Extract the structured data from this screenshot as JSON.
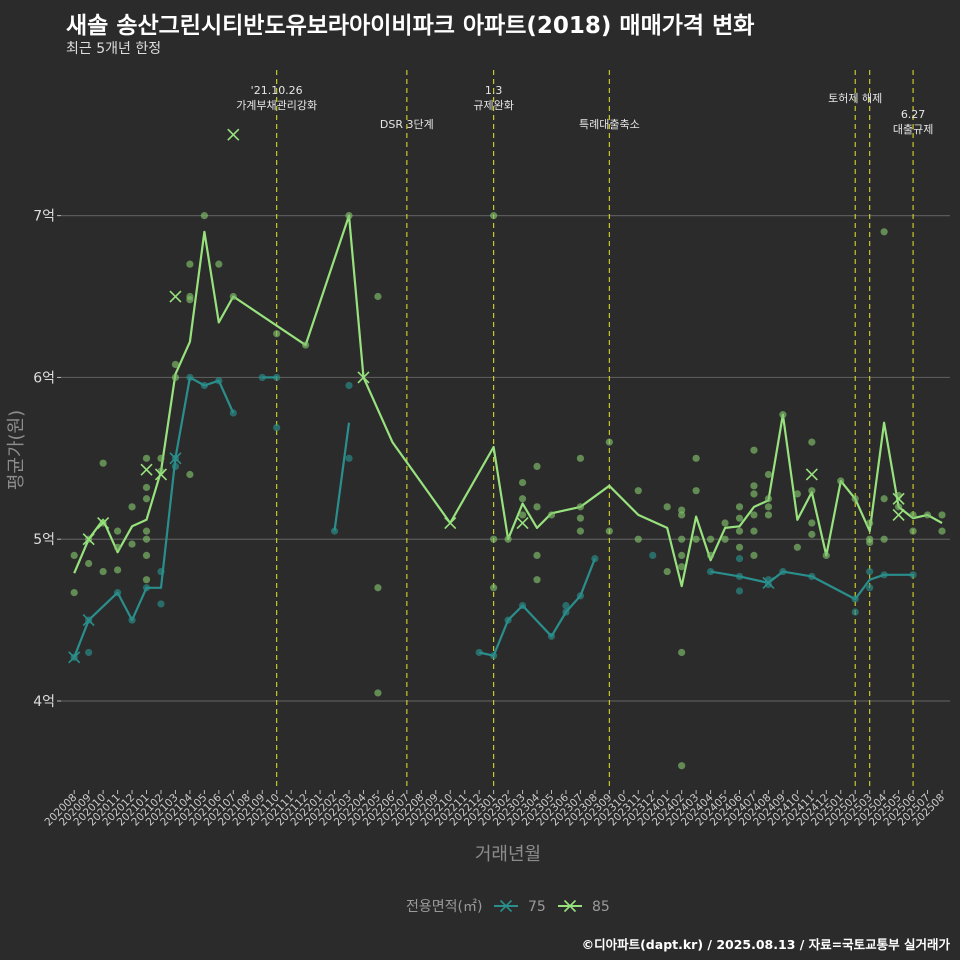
{
  "title": "새솔 송산그린시티반도유보라아이비파크 아파트(2018) 매매가격 변화",
  "subtitle": "최근 5개년 한정",
  "caption": "©디아파트(dapt.kr) / 2025.08.13 / 자료=국토교통부 실거래가",
  "chart_data": {
    "type": "line",
    "xlabel": "거래년월",
    "ylabel": "평균가(원)",
    "ylim": [
      3.45,
      7.9
    ],
    "yticks": [
      {
        "value": 4,
        "label": "4억"
      },
      {
        "value": 5,
        "label": "5억"
      },
      {
        "value": 6,
        "label": "6억"
      },
      {
        "value": 7,
        "label": "7억"
      }
    ],
    "x": [
      "202008",
      "202009",
      "202010",
      "202011",
      "202012",
      "202101",
      "202102",
      "202103",
      "202104",
      "202105",
      "202106",
      "202107",
      "202108",
      "202109",
      "202110",
      "202111",
      "202112",
      "202201",
      "202202",
      "202203",
      "202204",
      "202205",
      "202206",
      "202207",
      "202208",
      "202209",
      "202210",
      "202211",
      "202212",
      "202301",
      "202302",
      "202303",
      "202304",
      "202305",
      "202306",
      "202307",
      "202308",
      "202309",
      "202310",
      "202311",
      "202312",
      "202401",
      "202402",
      "202403",
      "202404",
      "202405",
      "202406",
      "202407",
      "202408",
      "202409",
      "202410",
      "202411",
      "202412",
      "202501",
      "202502",
      "202503",
      "202504",
      "202505",
      "202506",
      "202507",
      "202508"
    ],
    "grid": true,
    "legend": {
      "title": "전용면적(㎡)",
      "position": "bottom",
      "items": [
        {
          "name": "75",
          "color": "#2a8f8c"
        },
        {
          "name": "85",
          "color": "#98e27e"
        }
      ]
    },
    "series": [
      {
        "name": "75",
        "color": "#2a8f8c",
        "segments": [
          [
            [
              "202008",
              4.27
            ],
            [
              "202009",
              4.5
            ],
            [
              "202011",
              4.67
            ],
            [
              "202012",
              4.5
            ],
            [
              "202101",
              4.7
            ],
            [
              "202102",
              4.7
            ],
            [
              "202103",
              5.5
            ],
            [
              "202104",
              6.0
            ],
            [
              "202105",
              5.95
            ],
            [
              "202106",
              5.98
            ],
            [
              "202107",
              5.78
            ]
          ],
          [
            [
              "202109",
              6.0
            ],
            [
              "202110",
              6.0
            ]
          ],
          [
            [
              "202202",
              5.05
            ],
            [
              "202203",
              5.72
            ]
          ],
          [
            [
              "202212",
              4.3
            ],
            [
              "202301",
              4.28
            ],
            [
              "202302",
              4.5
            ],
            [
              "202303",
              4.59
            ],
            [
              "202305",
              4.4
            ],
            [
              "202306",
              4.55
            ],
            [
              "202307",
              4.65
            ],
            [
              "202308",
              4.88
            ]
          ],
          [
            [
              "202404",
              4.8
            ],
            [
              "202406",
              4.77
            ],
            [
              "202408",
              4.73
            ],
            [
              "202409",
              4.8
            ],
            [
              "202411",
              4.77
            ],
            [
              "202502",
              4.63
            ],
            [
              "202503",
              4.75
            ],
            [
              "202504",
              4.78
            ],
            [
              "202506",
              4.78
            ]
          ]
        ],
        "points": [
          [
            4.27,
            4.27
          ],
          [
            0,
            0
          ]
        ]
      },
      {
        "name": "85",
        "color": "#98e27e",
        "segments": [
          [
            [
              "202008",
              4.79
            ],
            [
              "202009",
              5.0
            ],
            [
              "202010",
              5.12
            ],
            [
              "202011",
              4.92
            ],
            [
              "202012",
              5.08
            ],
            [
              "202101",
              5.12
            ],
            [
              "202102",
              5.42
            ],
            [
              "202103",
              6.02
            ],
            [
              "202104",
              6.22
            ],
            [
              "202105",
              6.9
            ],
            [
              "202106",
              6.34
            ],
            [
              "202107",
              6.5
            ],
            [
              "202112",
              6.2
            ],
            [
              "202203",
              7.0
            ],
            [
              "202204",
              6.0
            ],
            [
              "202206",
              5.6
            ],
            [
              "202210",
              5.1
            ],
            [
              "202301",
              5.57
            ],
            [
              "202302",
              5.0
            ],
            [
              "202303",
              5.22
            ],
            [
              "202304",
              5.07
            ],
            [
              "202305",
              5.16
            ],
            [
              "202307",
              5.2
            ],
            [
              "202309",
              5.33
            ],
            [
              "202311",
              5.15
            ],
            [
              "202401",
              5.07
            ],
            [
              "202402",
              4.71
            ],
            [
              "202403",
              5.14
            ],
            [
              "202404",
              4.87
            ],
            [
              "202405",
              5.07
            ],
            [
              "202406",
              5.08
            ],
            [
              "202407",
              5.2
            ],
            [
              "202408",
              5.24
            ],
            [
              "202409",
              5.77
            ],
            [
              "202410",
              5.12
            ],
            [
              "202411",
              5.29
            ],
            [
              "202412",
              4.9
            ],
            [
              "202501",
              5.36
            ],
            [
              "202502",
              5.25
            ],
            [
              "202503",
              5.05
            ],
            [
              "202504",
              5.72
            ],
            [
              "202505",
              5.2
            ],
            [
              "202506",
              5.13
            ],
            [
              "202507",
              5.15
            ],
            [
              "202508",
              5.1
            ]
          ]
        ]
      }
    ],
    "scatter_75": [
      [
        "202008",
        4.27
      ],
      [
        "202009",
        4.3
      ],
      [
        "202009",
        4.5
      ],
      [
        "202011",
        4.67
      ],
      [
        "202012",
        4.5
      ],
      [
        "202101",
        4.7
      ],
      [
        "202102",
        4.6
      ],
      [
        "202102",
        4.8
      ],
      [
        "202103",
        5.5
      ],
      [
        "202103",
        5.45
      ],
      [
        "202104",
        6.0
      ],
      [
        "202105",
        5.95
      ],
      [
        "202106",
        5.98
      ],
      [
        "202107",
        5.78
      ],
      [
        "202109",
        6.0
      ],
      [
        "202110",
        6.0
      ],
      [
        "202110",
        5.69
      ],
      [
        "202202",
        5.05
      ],
      [
        "202203",
        5.95
      ],
      [
        "202203",
        5.5
      ],
      [
        "202212",
        4.3
      ],
      [
        "202301",
        4.28
      ],
      [
        "202302",
        4.5
      ],
      [
        "202303",
        4.59
      ],
      [
        "202305",
        4.4
      ],
      [
        "202306",
        4.55
      ],
      [
        "202306",
        4.59
      ],
      [
        "202307",
        4.65
      ],
      [
        "202308",
        4.88
      ],
      [
        "202312",
        4.9
      ],
      [
        "202404",
        4.8
      ],
      [
        "202406",
        4.68
      ],
      [
        "202406",
        4.77
      ],
      [
        "202406",
        4.88
      ],
      [
        "202408",
        4.72
      ],
      [
        "202408",
        4.75
      ],
      [
        "202409",
        4.8
      ],
      [
        "202411",
        4.77
      ],
      [
        "202502",
        4.55
      ],
      [
        "202502",
        4.63
      ],
      [
        "202503",
        4.7
      ],
      [
        "202503",
        4.8
      ],
      [
        "202504",
        4.78
      ],
      [
        "202506",
        4.78
      ]
    ],
    "scatter_85": [
      [
        "202008",
        4.9
      ],
      [
        "202008",
        4.67
      ],
      [
        "202009",
        5.0
      ],
      [
        "202009",
        4.85
      ],
      [
        "202010",
        5.47
      ],
      [
        "202010",
        5.1
      ],
      [
        "202010",
        4.8
      ],
      [
        "202011",
        4.81
      ],
      [
        "202011",
        4.95
      ],
      [
        "202011",
        5.05
      ],
      [
        "202012",
        4.97
      ],
      [
        "202012",
        5.2
      ],
      [
        "202101",
        4.9
      ],
      [
        "202101",
        5.0
      ],
      [
        "202101",
        4.75
      ],
      [
        "202101",
        5.05
      ],
      [
        "202101",
        5.25
      ],
      [
        "202101",
        5.32
      ],
      [
        "202101",
        5.5
      ],
      [
        "202102",
        5.42
      ],
      [
        "202102",
        5.5
      ],
      [
        "202103",
        6.08
      ],
      [
        "202103",
        6.0
      ],
      [
        "202104",
        6.7
      ],
      [
        "202104",
        6.5
      ],
      [
        "202104",
        6.48
      ],
      [
        "202104",
        5.4
      ],
      [
        "202105",
        7.0
      ],
      [
        "202106",
        6.7
      ],
      [
        "202107",
        6.5
      ],
      [
        "202110",
        6.27
      ],
      [
        "202112",
        6.2
      ],
      [
        "202203",
        7.0
      ],
      [
        "202205",
        6.5
      ],
      [
        "202205",
        4.7
      ],
      [
        "202205",
        4.05
      ],
      [
        "202301",
        7.0
      ],
      [
        "202301",
        5.0
      ],
      [
        "202301",
        4.7
      ],
      [
        "202302",
        5.0
      ],
      [
        "202303",
        5.35
      ],
      [
        "202303",
        5.25
      ],
      [
        "202303",
        5.15
      ],
      [
        "202304",
        5.45
      ],
      [
        "202304",
        5.2
      ],
      [
        "202304",
        4.9
      ],
      [
        "202304",
        4.75
      ],
      [
        "202305",
        5.15
      ],
      [
        "202307",
        5.5
      ],
      [
        "202307",
        5.2
      ],
      [
        "202307",
        5.13
      ],
      [
        "202307",
        5.05
      ],
      [
        "202309",
        5.6
      ],
      [
        "202309",
        5.05
      ],
      [
        "202311",
        5.3
      ],
      [
        "202311",
        5.0
      ],
      [
        "202401",
        5.2
      ],
      [
        "202401",
        4.8
      ],
      [
        "202402",
        5.18
      ],
      [
        "202402",
        5.15
      ],
      [
        "202402",
        5.0
      ],
      [
        "202402",
        4.9
      ],
      [
        "202402",
        4.83
      ],
      [
        "202402",
        4.3
      ],
      [
        "202402",
        3.6
      ],
      [
        "202403",
        5.5
      ],
      [
        "202403",
        5.3
      ],
      [
        "202403",
        5.0
      ],
      [
        "202404",
        5.0
      ],
      [
        "202404",
        4.9
      ],
      [
        "202405",
        5.1
      ],
      [
        "202405",
        5.0
      ],
      [
        "202406",
        5.2
      ],
      [
        "202406",
        5.13
      ],
      [
        "202406",
        5.05
      ],
      [
        "202406",
        4.95
      ],
      [
        "202407",
        5.55
      ],
      [
        "202407",
        5.33
      ],
      [
        "202407",
        5.28
      ],
      [
        "202407",
        5.15
      ],
      [
        "202407",
        5.05
      ],
      [
        "202407",
        4.9
      ],
      [
        "202408",
        5.4
      ],
      [
        "202408",
        5.25
      ],
      [
        "202408",
        5.2
      ],
      [
        "202408",
        5.15
      ],
      [
        "202409",
        5.77
      ],
      [
        "202410",
        5.28
      ],
      [
        "202410",
        4.95
      ],
      [
        "202411",
        5.6
      ],
      [
        "202411",
        5.3
      ],
      [
        "202411",
        5.1
      ],
      [
        "202411",
        5.03
      ],
      [
        "202412",
        4.9
      ],
      [
        "202501",
        5.36
      ],
      [
        "202502",
        5.25
      ],
      [
        "202503",
        5.0
      ],
      [
        "202503",
        4.98
      ],
      [
        "202503",
        5.1
      ],
      [
        "202504",
        6.9
      ],
      [
        "202504",
        5.25
      ],
      [
        "202504",
        5.0
      ],
      [
        "202505",
        5.2
      ],
      [
        "202505",
        5.27
      ],
      [
        "202506",
        5.15
      ],
      [
        "202506",
        5.05
      ],
      [
        "202507",
        5.15
      ],
      [
        "202508",
        5.15
      ],
      [
        "202508",
        5.05
      ]
    ],
    "crosses_75": [
      [
        "202008",
        4.27
      ],
      [
        "202009",
        4.5
      ],
      [
        "202103",
        5.5
      ],
      [
        "202408",
        4.73
      ]
    ],
    "crosses_85": [
      [
        "202009",
        5.0
      ],
      [
        "202010",
        5.1
      ],
      [
        "202101",
        5.43
      ],
      [
        "202102",
        5.4
      ],
      [
        "202103",
        6.5
      ],
      [
        "202107",
        7.5
      ],
      [
        "202204",
        6.0
      ],
      [
        "202210",
        5.1
      ],
      [
        "202303",
        5.1
      ],
      [
        "202411",
        5.4
      ],
      [
        "202505",
        5.25
      ],
      [
        "202505",
        5.15
      ]
    ],
    "annotations": [
      {
        "x": "202110",
        "lines": [
          "'21.10.26",
          "가계부채관리강화"
        ],
        "row": "top"
      },
      {
        "x": "202207",
        "lines": [
          "DSR 3단계"
        ],
        "row": "low"
      },
      {
        "x": "202301",
        "lines": [
          "1.3",
          "규제완화"
        ],
        "row": "top"
      },
      {
        "x": "202309",
        "lines": [
          "특례대출축소"
        ],
        "row": "low"
      },
      {
        "x": "202502",
        "lines": [
          "토허제 해제"
        ],
        "row": "top2"
      },
      {
        "x": "202503",
        "lines": [],
        "row": "none"
      },
      {
        "x": "202506",
        "lines": [
          "6.27",
          "대출규제"
        ],
        "row": "mid"
      }
    ]
  }
}
